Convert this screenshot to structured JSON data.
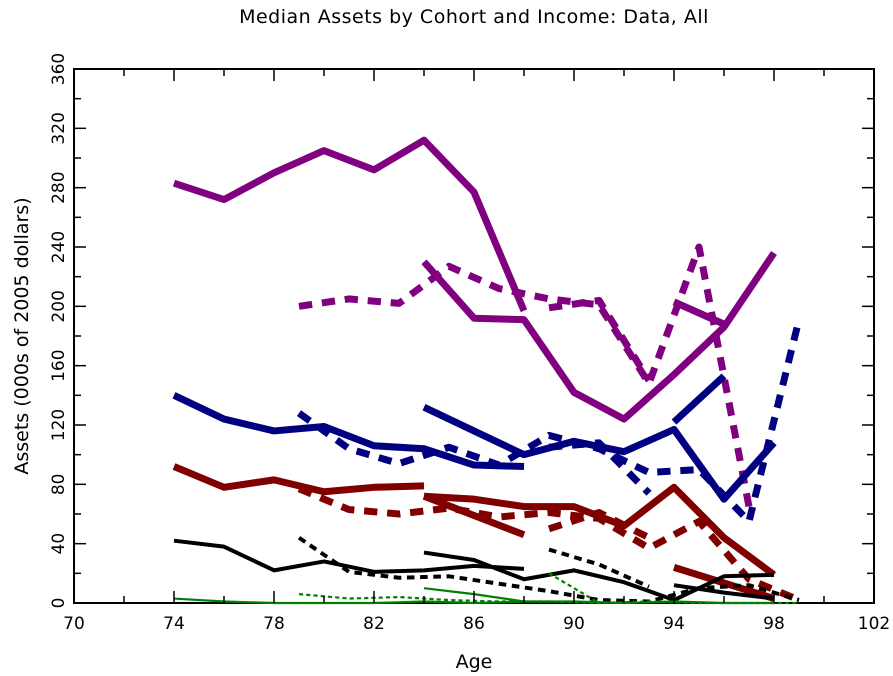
{
  "chart_data": {
    "type": "line",
    "title": "Median Assets by Cohort and Income:  Data, All",
    "xlabel": "Age",
    "ylabel": "Assets (000s of 2005 dollars)",
    "xlim": [
      70,
      102
    ],
    "ylim": [
      0,
      360
    ],
    "x_ticks": [
      "70",
      "74",
      "78",
      "82",
      "86",
      "90",
      "94",
      "98",
      "102"
    ],
    "y_ticks": [
      "0",
      "40",
      "80",
      "120",
      "160",
      "200",
      "240",
      "280",
      "320",
      "360"
    ],
    "grid": false,
    "legend": "none",
    "colors": {
      "purple": "#800080",
      "navy": "#000080",
      "maroon": "#800000",
      "black": "#000000",
      "green": "#008000"
    },
    "series": [
      {
        "color": "purple",
        "style": "solid",
        "width": "thick",
        "x": [
          74,
          76,
          78,
          80,
          82,
          84,
          86,
          88
        ],
        "y": [
          283,
          272,
          290,
          305,
          292,
          312,
          277,
          197
        ]
      },
      {
        "color": "purple",
        "style": "solid",
        "width": "thick",
        "x": [
          84,
          86,
          88,
          90,
          92,
          94,
          96,
          98
        ],
        "y": [
          230,
          192,
          191,
          142,
          124,
          154,
          186,
          236
        ]
      },
      {
        "color": "purple",
        "style": "solid",
        "width": "thick",
        "x": [
          94,
          96
        ],
        "y": [
          203,
          188
        ]
      },
      {
        "color": "purple",
        "style": "dashed",
        "width": "thick",
        "x": [
          79,
          81,
          83,
          85,
          87,
          89,
          91,
          93,
          95,
          97
        ],
        "y": [
          200,
          205,
          202,
          227,
          212,
          205,
          201,
          148,
          240,
          65
        ]
      },
      {
        "color": "purple",
        "style": "dashed",
        "width": "thick",
        "x": [
          89,
          91,
          93
        ],
        "y": [
          199,
          204,
          150
        ]
      },
      {
        "color": "navy",
        "style": "solid",
        "width": "thick",
        "x": [
          74,
          76,
          78,
          80,
          82,
          84,
          86,
          88
        ],
        "y": [
          140,
          124,
          116,
          119,
          106,
          104,
          93,
          92
        ]
      },
      {
        "color": "navy",
        "style": "solid",
        "width": "thick",
        "x": [
          84,
          86,
          88,
          90,
          92,
          94,
          96,
          98
        ],
        "y": [
          132,
          116,
          100,
          109,
          102,
          117,
          70,
          108
        ]
      },
      {
        "color": "navy",
        "style": "solid",
        "width": "thick",
        "x": [
          94,
          96
        ],
        "y": [
          122,
          153
        ]
      },
      {
        "color": "navy",
        "style": "dashed",
        "width": "thick",
        "x": [
          79,
          81,
          83,
          85,
          87,
          89,
          91,
          93,
          95,
          97,
          99
        ],
        "y": [
          128,
          104,
          94,
          105,
          93,
          113,
          104,
          88,
          90,
          55,
          191
        ]
      },
      {
        "color": "navy",
        "style": "dashed",
        "width": "thick",
        "x": [
          89,
          91,
          93
        ],
        "y": [
          105,
          108,
          74
        ]
      },
      {
        "color": "maroon",
        "style": "solid",
        "width": "thick",
        "x": [
          74,
          76,
          78,
          80,
          82,
          84
        ],
        "y": [
          92,
          78,
          83,
          75,
          78,
          79
        ]
      },
      {
        "color": "maroon",
        "style": "solid",
        "width": "thick",
        "x": [
          84,
          86,
          88,
          90,
          92,
          94,
          96,
          98
        ],
        "y": [
          72,
          70,
          65,
          65,
          52,
          78,
          44,
          19
        ]
      },
      {
        "color": "maroon",
        "style": "solid",
        "width": "thick",
        "x": [
          84,
          88
        ],
        "y": [
          72,
          46
        ]
      },
      {
        "color": "maroon",
        "style": "solid",
        "width": "thick",
        "x": [
          94,
          98
        ],
        "y": [
          24,
          3
        ]
      },
      {
        "color": "maroon",
        "style": "dashed",
        "width": "thick",
        "x": [
          79,
          81,
          83,
          85,
          87,
          89,
          91,
          93,
          95,
          97,
          99
        ],
        "y": [
          77,
          63,
          60,
          64,
          58,
          61,
          57,
          37,
          55,
          16,
          2
        ]
      },
      {
        "color": "maroon",
        "style": "dashed",
        "width": "thick",
        "x": [
          89,
          91,
          93
        ],
        "y": [
          50,
          61,
          44
        ]
      },
      {
        "color": "black",
        "style": "solid",
        "width": "medium",
        "x": [
          74,
          76,
          78,
          80,
          82,
          84,
          86,
          88
        ],
        "y": [
          42,
          38,
          22,
          28,
          21,
          22,
          25,
          23
        ]
      },
      {
        "color": "black",
        "style": "solid",
        "width": "medium",
        "x": [
          84,
          86,
          88,
          90,
          92,
          94,
          96,
          98
        ],
        "y": [
          34,
          29,
          16,
          22,
          14,
          2,
          18,
          19
        ]
      },
      {
        "color": "black",
        "style": "solid",
        "width": "medium",
        "x": [
          94,
          96,
          98
        ],
        "y": [
          12,
          7,
          3
        ]
      },
      {
        "color": "black",
        "style": "dashed",
        "width": "medium",
        "x": [
          79,
          81,
          83,
          85,
          87,
          89,
          91,
          93,
          95,
          97,
          99
        ],
        "y": [
          44,
          21,
          17,
          18,
          13,
          8,
          2,
          1,
          10,
          12,
          2
        ]
      },
      {
        "color": "black",
        "style": "dashed",
        "width": "medium",
        "x": [
          89,
          91,
          93
        ],
        "y": [
          36,
          26,
          11
        ]
      },
      {
        "color": "green",
        "style": "solid",
        "width": "thin",
        "x": [
          74,
          76,
          78,
          80,
          82,
          84,
          86,
          88
        ],
        "y": [
          3,
          1,
          0,
          0,
          0,
          1,
          0,
          1
        ]
      },
      {
        "color": "green",
        "style": "solid",
        "width": "thin",
        "x": [
          84,
          86,
          88,
          90,
          92,
          94,
          96,
          98
        ],
        "y": [
          10,
          6,
          1,
          1,
          0,
          1,
          0,
          0
        ]
      },
      {
        "color": "green",
        "style": "dashed",
        "width": "thin",
        "x": [
          79,
          81,
          83,
          85,
          87,
          89,
          91,
          93,
          95,
          97,
          99
        ],
        "y": [
          6,
          3,
          4,
          2,
          1,
          1,
          0,
          1,
          0,
          0,
          0
        ]
      },
      {
        "color": "green",
        "style": "dashed",
        "width": "thin",
        "x": [
          89,
          91
        ],
        "y": [
          20,
          0
        ]
      }
    ]
  }
}
